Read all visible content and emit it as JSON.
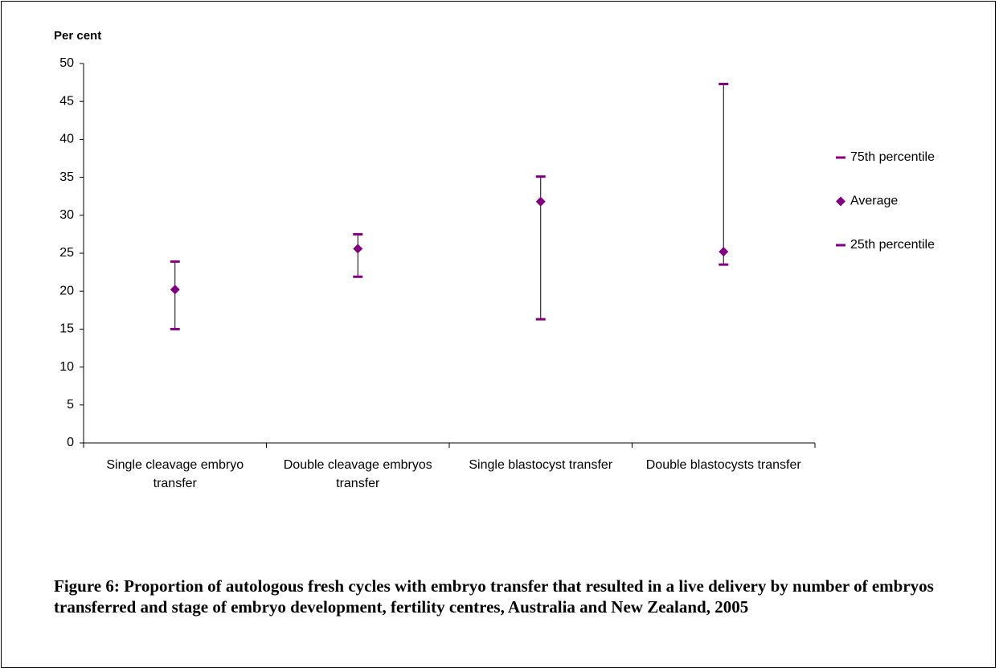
{
  "chart_data": {
    "type": "stock",
    "y_label": "Per cent",
    "categories": [
      "Single cleavage embryo transfer",
      "Double cleavage embryos transfer",
      "Single blastocyst transfer",
      "Double blastocysts transfer"
    ],
    "series": [
      {
        "name": "75th percentile",
        "color": "#800080",
        "marker": "dash",
        "values": [
          23.9,
          27.5,
          35.1,
          47.3
        ]
      },
      {
        "name": "Average",
        "color": "#800080",
        "marker": "diamond",
        "values": [
          20.2,
          25.6,
          31.8,
          25.2
        ]
      },
      {
        "name": "25th percentile",
        "color": "#800080",
        "marker": "dash",
        "values": [
          15.0,
          21.9,
          16.3,
          23.5
        ]
      }
    ],
    "ylim": [
      0,
      50
    ],
    "yticks": [
      0,
      5,
      10,
      15,
      20,
      25,
      30,
      35,
      40,
      45,
      50
    ],
    "high_low_lines": true,
    "legend": "right",
    "caption": "Figure 6: Proportion of autologous fresh cycles with embryo transfer that resulted in a live delivery by number of embryos transferred and stage of embryo development, fertility centres, Australia and New Zealand, 2005"
  }
}
